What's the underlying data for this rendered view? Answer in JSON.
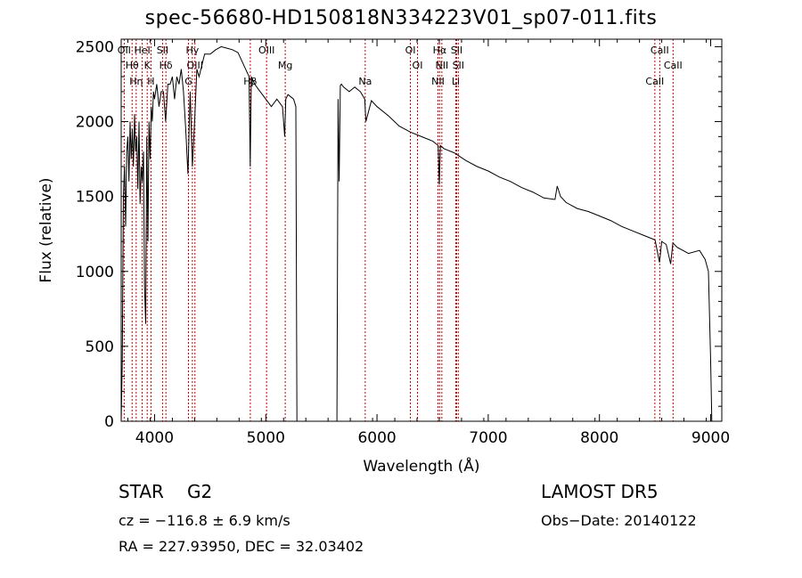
{
  "header": {
    "title": "spec-56680-HD150818N334223V01_sp07-011.fits"
  },
  "info": {
    "object_type": "STAR",
    "subclass": "G2",
    "survey": "LAMOST  DR5",
    "cz": "cz = −116.8 ± 6.9 km/s",
    "obs_date": "Obs−Date: 20140122",
    "radec": "RA = 227.93950, DEC =  32.03402"
  },
  "colors": {
    "spectrum": "#000000",
    "lines": "#cc0000",
    "axes": "#000000"
  },
  "chart_data": {
    "type": "line",
    "title": "spec-56680-HD150818N334223V01_sp07-011.fits",
    "xlabel": "Wavelength (Å)",
    "ylabel": "Flux (relative)",
    "xlim": [
      3700,
      9100
    ],
    "ylim": [
      0,
      2550
    ],
    "xticks": [
      4000,
      5000,
      6000,
      7000,
      8000,
      9000
    ],
    "yticks": [
      0,
      500,
      1000,
      1500,
      2000,
      2500
    ],
    "grid": false,
    "series": [
      {
        "x": [
          3700,
          3710,
          3720,
          3730,
          3740,
          3750,
          3760,
          3770,
          3780,
          3790,
          3800,
          3810,
          3820,
          3830,
          3840,
          3850,
          3860,
          3870,
          3880,
          3890,
          3900,
          3910,
          3920,
          3930,
          3940,
          3950,
          3960,
          3970,
          3980,
          3990,
          4000,
          4020,
          4040,
          4060,
          4080,
          4100,
          4120,
          4140,
          4160,
          4180,
          4200,
          4220,
          4240,
          4260,
          4280,
          4300,
          4320,
          4340,
          4360,
          4380,
          4400,
          4450,
          4500,
          4550,
          4600,
          4650,
          4700,
          4750,
          4800,
          4850,
          4860,
          4870,
          4900,
          4950,
          5000,
          5050,
          5100,
          5150,
          5170,
          5180,
          5200,
          5250,
          5270,
          5280,
          5300,
          5400,
          5500,
          5600,
          5640,
          5650,
          5660,
          5670,
          5680,
          5700,
          5750,
          5800,
          5850,
          5890,
          5900,
          5950,
          6000,
          6100,
          6200,
          6300,
          6400,
          6500,
          6550,
          6560,
          6570,
          6600,
          6700,
          6800,
          6900,
          7000,
          7100,
          7200,
          7300,
          7400,
          7500,
          7600,
          7620,
          7650,
          7700,
          7800,
          7900,
          8000,
          8100,
          8200,
          8300,
          8400,
          8500,
          8540,
          8560,
          8600,
          8640,
          8660,
          8700,
          8800,
          8900,
          8950,
          8980,
          9000,
          9010
        ],
        "y": [
          0,
          400,
          1500,
          1700,
          1300,
          1800,
          1900,
          1600,
          2000,
          1750,
          1950,
          1700,
          2050,
          1800,
          1900,
          1550,
          2000,
          1450,
          1700,
          1600,
          1800,
          900,
          650,
          1900,
          1200,
          2000,
          1750,
          2100,
          2000,
          2200,
          2150,
          2250,
          2100,
          2200,
          2200,
          2000,
          2250,
          2250,
          2300,
          2150,
          2300,
          2250,
          2350,
          2200,
          1950,
          1650,
          2200,
          1700,
          2000,
          2350,
          2300,
          2450,
          2450,
          2480,
          2500,
          2490,
          2480,
          2460,
          2380,
          2300,
          1700,
          2300,
          2250,
          2200,
          2150,
          2100,
          2150,
          2100,
          1900,
          2150,
          2180,
          2150,
          2100,
          0,
          0,
          0,
          0,
          0,
          0,
          2150,
          1600,
          2240,
          2250,
          2230,
          2200,
          2230,
          2200,
          2150,
          2000,
          2140,
          2100,
          2040,
          1970,
          1930,
          1900,
          1870,
          1840,
          1580,
          1840,
          1820,
          1790,
          1740,
          1700,
          1670,
          1630,
          1600,
          1560,
          1530,
          1490,
          1480,
          1570,
          1500,
          1460,
          1420,
          1400,
          1370,
          1340,
          1300,
          1270,
          1240,
          1210,
          1060,
          1200,
          1180,
          1050,
          1190,
          1160,
          1120,
          1140,
          1080,
          1000,
          400,
          0
        ]
      }
    ],
    "lines": [
      {
        "label": "OII",
        "wave": 3727
      },
      {
        "label": "Hθ",
        "wave": 3798
      },
      {
        "label": "Hη",
        "wave": 3835
      },
      {
        "label": "HeI",
        "wave": 3889
      },
      {
        "label": "K",
        "wave": 3934
      },
      {
        "label": "H",
        "wave": 3968
      },
      {
        "label": "SII",
        "wave": 4072
      },
      {
        "label": "Hδ",
        "wave": 4102
      },
      {
        "label": "G",
        "wave": 4305
      },
      {
        "label": "Hγ",
        "wave": 4340
      },
      {
        "label": "OIII",
        "wave": 4363
      },
      {
        "label": "Hβ",
        "wave": 4861
      },
      {
        "label": "OIII",
        "wave": 5007
      },
      {
        "label": "Mg",
        "wave": 5175
      },
      {
        "label": "Na",
        "wave": 5894
      },
      {
        "label": "OI",
        "wave": 6300
      },
      {
        "label": "OI",
        "wave": 6364
      },
      {
        "label": "NII",
        "wave": 6548
      },
      {
        "label": "Hα",
        "wave": 6563
      },
      {
        "label": "NII",
        "wave": 6583
      },
      {
        "label": "Li",
        "wave": 6708
      },
      {
        "label": "SII",
        "wave": 6716
      },
      {
        "label": "SII",
        "wave": 6731
      },
      {
        "label": "CaII",
        "wave": 8498
      },
      {
        "label": "CaII",
        "wave": 8542
      },
      {
        "label": "CaII",
        "wave": 8662
      }
    ]
  }
}
